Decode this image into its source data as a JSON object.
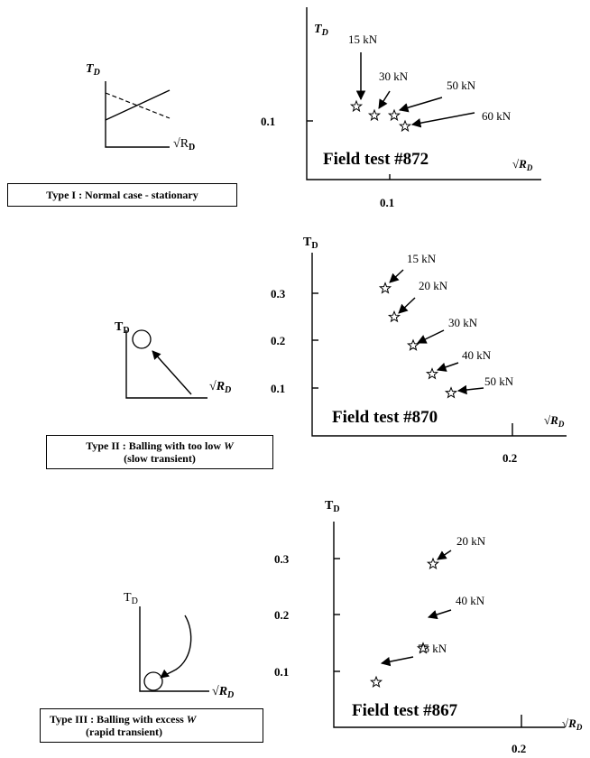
{
  "symbols": {
    "t": "T",
    "d": "D",
    "r": "R",
    "sqrt": "√",
    "w": "W"
  },
  "type1": {
    "caption": "Type I : Normal case - stationary"
  },
  "type2": {
    "caption_pre": "Type II : Balling with too low ",
    "caption_line2": "(slow transient)"
  },
  "type3": {
    "caption_pre": "Type III : Balling with excess ",
    "caption_line2": "(rapid transient)"
  },
  "chart_data": [
    {
      "type": "scatter",
      "title": "Field test #872",
      "x_ticks": [
        "0.1"
      ],
      "y_ticks": [
        "0.1"
      ],
      "points": [
        {
          "label": "15 kN"
        },
        {
          "label": "30 kN"
        },
        {
          "label": "50 kN"
        },
        {
          "label": "60 kN"
        }
      ]
    },
    {
      "type": "scatter",
      "title": "Field test #870",
      "x_ticks": [
        "0.2"
      ],
      "y_ticks": [
        "0.3",
        "0.2",
        "0.1"
      ],
      "points": [
        {
          "label": "15 kN",
          "y": 0.31
        },
        {
          "label": "20 kN",
          "y": 0.25
        },
        {
          "label": "30 kN",
          "y": 0.19
        },
        {
          "label": "40 kN",
          "y": 0.13
        },
        {
          "label": "50 kN",
          "y": 0.09
        }
      ]
    },
    {
      "type": "scatter",
      "title": "Field test #867",
      "x_ticks": [
        "0.2"
      ],
      "y_ticks": [
        "0.3",
        "0.2",
        "0.1"
      ],
      "points": [
        {
          "label": "20 kN",
          "y": 0.29
        },
        {
          "label": "40 kN",
          "y": 0.14
        },
        {
          "label": "75 kN",
          "y": 0.08
        }
      ]
    }
  ]
}
